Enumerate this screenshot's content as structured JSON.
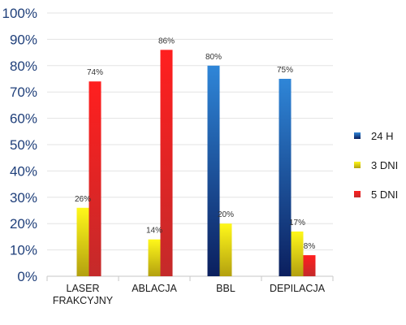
{
  "chart_data": {
    "type": "bar",
    "title": "",
    "xlabel": "",
    "ylabel": "",
    "ylim": [
      0,
      100
    ],
    "yticks": [
      "0%",
      "10%",
      "20%",
      "30%",
      "40%",
      "50%",
      "60%",
      "70%",
      "80%",
      "90%",
      "100%"
    ],
    "grid": true,
    "legend_position": "right",
    "categories": [
      [
        "LASER",
        "FRAKCYJNY"
      ],
      [
        "ABLACJA"
      ],
      [
        "BBL"
      ],
      [
        "DEPILACJA"
      ]
    ],
    "series": [
      {
        "name": "24 H",
        "color": "#1f77c9",
        "gradient": [
          "#2f86d8",
          "#0b1f5e"
        ],
        "values": [
          null,
          null,
          80,
          75
        ],
        "labels": [
          "",
          "",
          "80%",
          "75%"
        ]
      },
      {
        "name": "3 DNI",
        "color": "#f3ee10",
        "gradient": [
          "#fff81a",
          "#b3a00f"
        ],
        "values": [
          26,
          14,
          20,
          17
        ],
        "labels": [
          "26%",
          "14%",
          "20%",
          "17%"
        ]
      },
      {
        "name": "5 DNI",
        "color": "#ee1c1c",
        "gradient": [
          "#ff1f1f",
          "#c42a2a"
        ],
        "values": [
          74,
          86,
          null,
          8
        ],
        "labels": [
          "74%",
          "86%",
          "",
          "8%"
        ]
      }
    ]
  }
}
